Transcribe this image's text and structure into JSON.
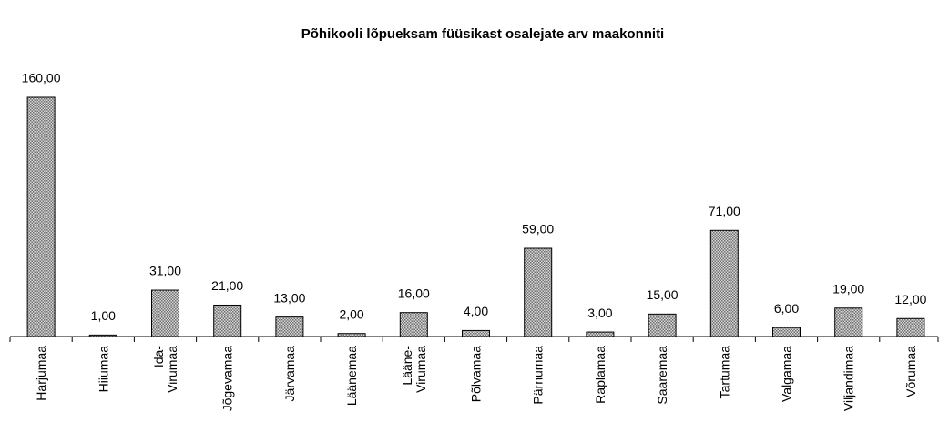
{
  "chart_data": {
    "type": "bar",
    "title": "Põhikooli lõpueksam füüsikast osalejate arv maakonniti",
    "categories": [
      "Harjumaa",
      "Hiiumaa",
      "Ida-\nVirumaa",
      "Jõgevamaa",
      "Järvamaa",
      "Läänemaa",
      "Lääne-\nVirumaa",
      "Põlvamaa",
      "Pärnumaa",
      "Raplamaa",
      "Saaremaa",
      "Tartumaa",
      "Valgamaa",
      "Viljandimaa",
      "Võrumaa"
    ],
    "values": [
      160,
      1,
      31,
      21,
      13,
      2,
      16,
      4,
      59,
      3,
      15,
      71,
      6,
      19,
      12
    ],
    "value_labels": [
      "160,00",
      "1,00",
      "31,00",
      "21,00",
      "13,00",
      "2,00",
      "16,00",
      "4,00",
      "59,00",
      "3,00",
      "15,00",
      "71,00",
      "6,00",
      "19,00",
      "12,00"
    ],
    "color": "#a6a6a6",
    "ylim": [
      0,
      160
    ]
  }
}
